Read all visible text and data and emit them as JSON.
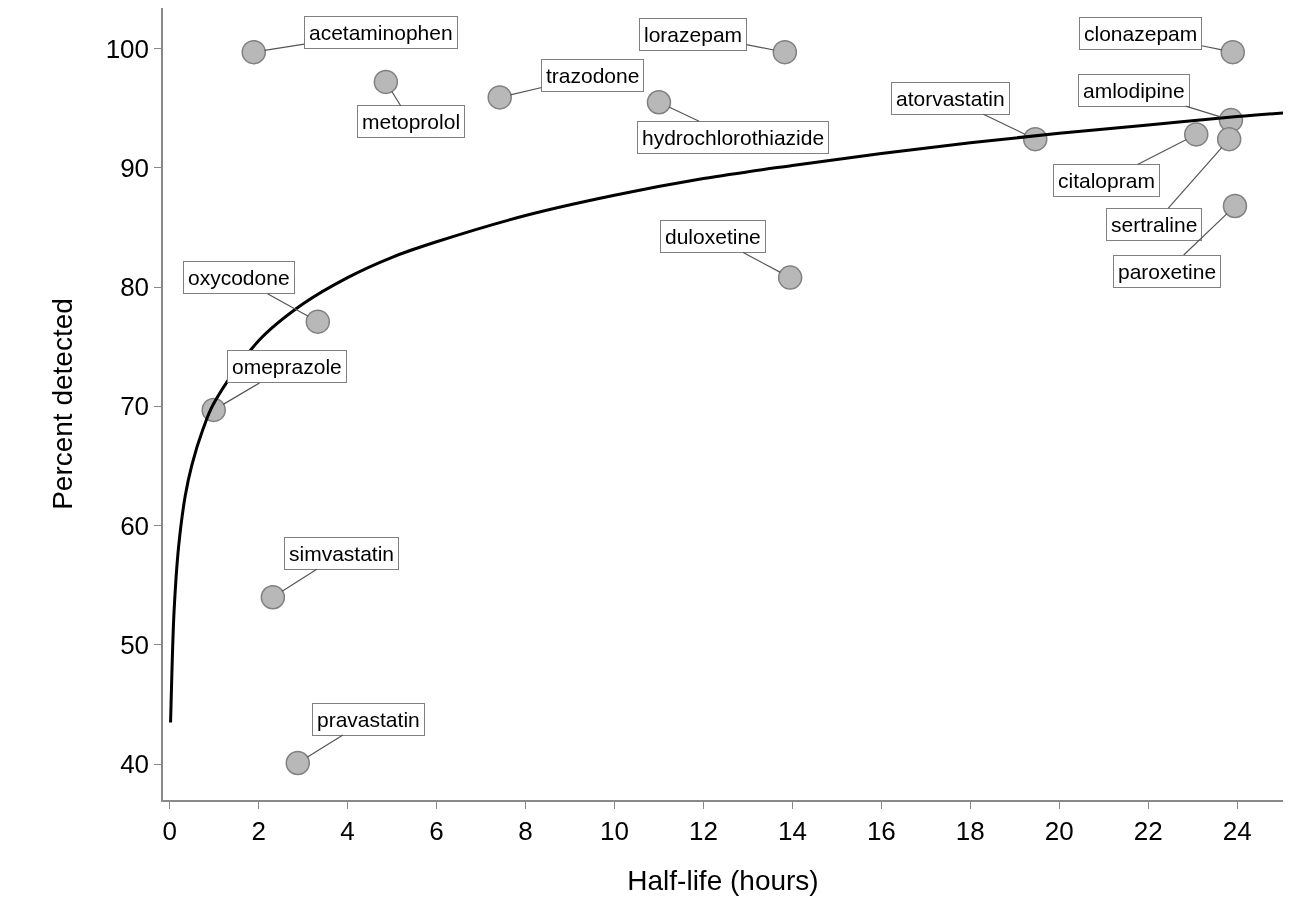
{
  "chart_data": {
    "type": "scatter",
    "xlabel": "Half-life (hours)",
    "ylabel": "Percent detected",
    "xlim": [
      -0.15,
      25.03
    ],
    "ylim": [
      37.0,
      103.4
    ],
    "xticks": [
      0,
      2,
      4,
      6,
      8,
      10,
      12,
      14,
      16,
      18,
      20,
      22,
      24
    ],
    "yticks": [
      40,
      50,
      60,
      70,
      80,
      90,
      100
    ],
    "series": [
      {
        "marker": "circle",
        "color": "#b8b8b8",
        "x": [
          1.89,
          4.86,
          7.42,
          11.0,
          13.83,
          23.9,
          23.86,
          19.46,
          23.08,
          23.82,
          23.95,
          13.95,
          3.33,
          0.99,
          2.32,
          2.88
        ],
        "values": [
          99.7,
          97.2,
          95.9,
          95.5,
          99.7,
          99.7,
          94.0,
          92.4,
          92.8,
          92.4,
          86.8,
          80.8,
          77.1,
          69.7,
          54.0,
          40.1
        ]
      },
      {
        "type": "line",
        "marker": "none",
        "line_style": "solid",
        "color": "#000000",
        "x": [
          0.02,
          0.05,
          0.1,
          0.2,
          0.35,
          0.5,
          0.75,
          1,
          2,
          3,
          4,
          5,
          6,
          8,
          10,
          12,
          14,
          16,
          18,
          20,
          22,
          24,
          25.03
        ],
        "values": [
          43.5,
          47.7,
          52.9,
          58.2,
          62.5,
          65.1,
          68.1,
          70.3,
          75.5,
          78.6,
          80.8,
          82.5,
          83.8,
          86.0,
          87.7,
          89.1,
          90.2,
          91.2,
          92.1,
          92.9,
          93.6,
          94.3,
          94.6
        ]
      }
    ],
    "annotations": [
      {
        "text": "acetaminophen",
        "x": 1.89,
        "y": 99.7
      },
      {
        "text": "metoprolol",
        "x": 4.86,
        "y": 97.2
      },
      {
        "text": "trazodone",
        "x": 7.42,
        "y": 95.9
      },
      {
        "text": "hydrochlorothiazide",
        "x": 11.0,
        "y": 95.5
      },
      {
        "text": "lorazepam",
        "x": 13.83,
        "y": 99.7
      },
      {
        "text": "clonazepam",
        "x": 23.9,
        "y": 99.7
      },
      {
        "text": "amlodipine",
        "x": 23.86,
        "y": 94.0
      },
      {
        "text": "atorvastatin",
        "x": 19.46,
        "y": 92.4
      },
      {
        "text": "citalopram",
        "x": 23.08,
        "y": 92.8
      },
      {
        "text": "sertraline",
        "x": 23.82,
        "y": 92.4
      },
      {
        "text": "paroxetine",
        "x": 23.95,
        "y": 86.8
      },
      {
        "text": "duloxetine",
        "x": 13.95,
        "y": 80.8
      },
      {
        "text": "oxycodone",
        "x": 3.33,
        "y": 77.1
      },
      {
        "text": "omeprazole",
        "x": 0.99,
        "y": 69.7
      },
      {
        "text": "simvastatin",
        "x": 2.32,
        "y": 54.0
      },
      {
        "text": "pravastatin",
        "x": 2.88,
        "y": 40.1
      }
    ]
  }
}
